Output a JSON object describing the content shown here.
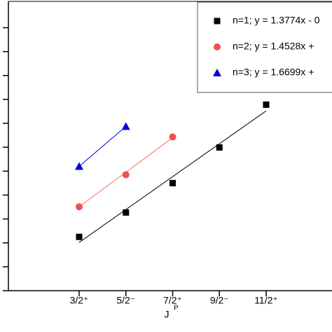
{
  "chart_data": {
    "type": "scatter",
    "x_label": "J",
    "x_label_sup": "P",
    "categories": [
      "3/2⁺",
      "5/2⁻",
      "7/2⁺",
      "9/2⁻",
      "11/2⁺"
    ],
    "ylim": [
      0,
      12.1
    ],
    "yticks": [
      0,
      1,
      2,
      3,
      4,
      5,
      6,
      7,
      8,
      9,
      10,
      11
    ],
    "legend": "upper right",
    "series": [
      {
        "name": "n=1;  y = 1.3774x - 0",
        "color": "#000000",
        "marker": "square",
        "values": [
          2.25,
          3.27,
          4.5,
          5.99,
          7.78
        ],
        "fit_values": [
          2.02,
          7.52
        ]
      },
      {
        "name": "n=2;  y = 1.4528x +",
        "color": "#f05050",
        "marker": "circle",
        "values": [
          3.51,
          4.85,
          6.43,
          null,
          null
        ],
        "fit_values": [
          3.51,
          6.4
        ]
      },
      {
        "name": "n=3;  y = 1.6699x +",
        "color": "#0000e0",
        "marker": "triangle",
        "values": [
          5.2,
          6.87,
          null,
          null,
          null
        ],
        "fit_values": [
          5.2,
          6.87
        ]
      }
    ]
  }
}
